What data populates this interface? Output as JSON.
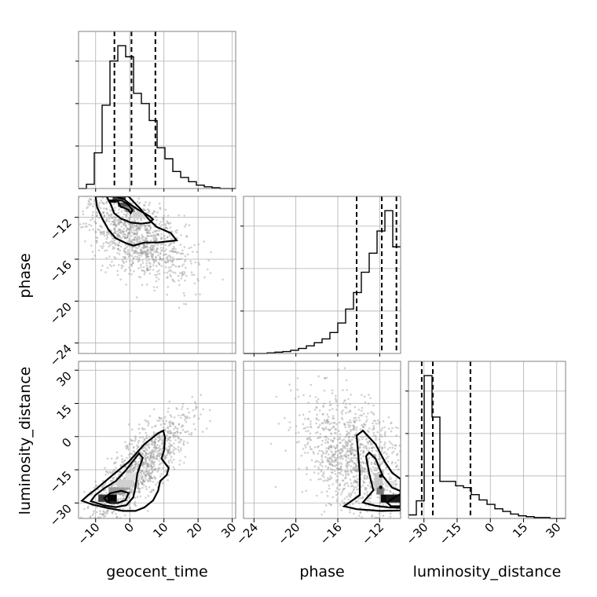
{
  "chart_data": {
    "type": "corner",
    "parameters": [
      "geocent_time",
      "phase",
      "luminosity_distance"
    ],
    "axis_labels": {
      "x": [
        "geocent_time",
        "phase",
        "luminosity_distance"
      ],
      "y": [
        "",
        "phase",
        "luminosity_distance"
      ]
    },
    "ranges": {
      "geocent_time": [
        -15,
        31
      ],
      "phase": [
        -25,
        -10
      ],
      "luminosity_distance": [
        -37,
        34
      ]
    },
    "ticks": {
      "geocent_time": [
        -10,
        0,
        10,
        20,
        30
      ],
      "phase": [
        -24,
        -20,
        -16,
        -12
      ],
      "luminosity_distance": [
        -30,
        -15,
        0,
        15,
        30
      ]
    },
    "tick_labels": {
      "geocent_time": [
        "−10",
        "0",
        "10",
        "20",
        "30"
      ],
      "phase": [
        "−24",
        "−20",
        "−16",
        "−12"
      ],
      "luminosity_distance": [
        "−30",
        "−15",
        "0",
        "15",
        "30"
      ]
    },
    "grid": true,
    "marginals": {
      "geocent_time": {
        "bin_edges": [
          -15,
          -12.7,
          -10.4,
          -8.1,
          -5.8,
          -3.5,
          -1.2,
          1.1,
          3.4,
          5.7,
          8.0,
          10.3,
          12.6,
          14.9,
          17.2,
          19.5,
          21.8,
          24.1,
          26.4,
          28.7,
          31
        ],
        "counts": [
          0,
          5,
          42,
          98,
          150,
          168,
          155,
          112,
          100,
          80,
          48,
          35,
          20,
          13,
          8,
          4,
          2,
          1,
          0,
          0
        ],
        "quantiles": [
          -4.5,
          0.5,
          7.5
        ]
      },
      "phase": {
        "bin_edges": [
          -25,
          -24.25,
          -23.5,
          -22.75,
          -22,
          -21.25,
          -20.5,
          -19.75,
          -19,
          -18.25,
          -17.5,
          -16.75,
          -16,
          -15.25,
          -14.5,
          -13.75,
          -13,
          -12.25,
          -11.5,
          -10.75,
          -10
        ],
        "counts": [
          0,
          0,
          0,
          1,
          2,
          3,
          5,
          8,
          12,
          17,
          23,
          33,
          48,
          70,
          96,
          128,
          158,
          193,
          225,
          168
        ],
        "quantiles": [
          -14.2,
          -11.8,
          -10.4
        ]
      },
      "luminosity_distance": {
        "bin_edges": [
          -37,
          -33.45,
          -29.9,
          -26.35,
          -22.8,
          -19.25,
          -15.7,
          -12.15,
          -8.6,
          -5.05,
          -1.5,
          2.05,
          5.6,
          9.15,
          12.7,
          16.25,
          19.8,
          23.35,
          26.9,
          30.45,
          34
        ],
        "counts": [
          4,
          20,
          162,
          115,
          42,
          42,
          37,
          35,
          27,
          21,
          16,
          11,
          8,
          5,
          3,
          2,
          1,
          1,
          0,
          0
        ],
        "quantiles": [
          -31,
          -26,
          -9
        ]
      }
    },
    "joint": [
      {
        "x": "geocent_time",
        "y": "phase",
        "scatter_center": [
          2,
          -13.8
        ],
        "scatter_spread": [
          8,
          2.2
        ],
        "correlation": -0.55,
        "contours": [
          [
            [
              -3.6,
              -10.4
            ],
            [
              -2.7,
              -11.0
            ],
            [
              -1.6,
              -11.1
            ],
            [
              -0.4,
              -11.3
            ],
            [
              0.3,
              -11.6
            ],
            [
              0.8,
              -11.3
            ],
            [
              -0.4,
              -10.8
            ],
            [
              -2.3,
              -10.4
            ]
          ],
          [
            [
              -6.8,
              -10.0
            ],
            [
              -5.5,
              -10.8
            ],
            [
              -4.6,
              -11.6
            ],
            [
              -2.7,
              -12.1
            ],
            [
              0.3,
              -12.5
            ],
            [
              3.4,
              -12.6
            ],
            [
              5.8,
              -12.5
            ],
            [
              6.8,
              -12.2
            ],
            [
              5.8,
              -11.9
            ],
            [
              2.6,
              -11.3
            ],
            [
              0.3,
              -10.8
            ],
            [
              -1.6,
              -10.3
            ],
            [
              -4.1,
              -10.0
            ]
          ],
          [
            [
              -10.0,
              -10.0
            ],
            [
              -9.6,
              -11.0
            ],
            [
              -8.1,
              -12.1
            ],
            [
              -6.2,
              -13.2
            ],
            [
              -4.1,
              -14.0
            ],
            [
              -0.9,
              -14.5
            ],
            [
              1.1,
              -14.7
            ],
            [
              4.3,
              -14.4
            ],
            [
              8.3,
              -14.4
            ],
            [
              13.7,
              -14.2
            ],
            [
              12.0,
              -13.5
            ],
            [
              7.8,
              -12.9
            ],
            [
              5.3,
              -12.1
            ],
            [
              3.4,
              -11.3
            ],
            [
              1.1,
              -10.5
            ],
            [
              -0.4,
              -10.0
            ]
          ]
        ]
      },
      {
        "x": "geocent_time",
        "y": "luminosity_distance",
        "scatter_center": [
          3,
          -14
        ],
        "scatter_spread": [
          7,
          12
        ],
        "correlation": 0.8,
        "contours": [
          [
            [
              -6.7,
              -29.5
            ],
            [
              -7.5,
              -27.8
            ],
            [
              -5.7,
              -25.6
            ],
            [
              -2.5,
              -24.5
            ],
            [
              -0.3,
              -25.5
            ],
            [
              -1.3,
              -28.8
            ],
            [
              -3.5,
              -30.0
            ],
            [
              -5.7,
              -30.0
            ]
          ],
          [
            [
              -11.4,
              -29.2
            ],
            [
              -10.1,
              -26.5
            ],
            [
              -7.5,
              -23.4
            ],
            [
              -4.1,
              -20.1
            ],
            [
              -1.3,
              -15.5
            ],
            [
              2.7,
              -7.6
            ],
            [
              3.8,
              -9.6
            ],
            [
              2.2,
              -16.8
            ],
            [
              1.7,
              -22.5
            ],
            [
              1.0,
              -27.5
            ],
            [
              -1.0,
              -31.0
            ],
            [
              -4.1,
              -31.9
            ],
            [
              -7.5,
              -31.1
            ]
          ],
          [
            [
              -14.0,
              -29.0
            ],
            [
              -12.2,
              -26.5
            ],
            [
              -9.6,
              -23.4
            ],
            [
              -5.2,
              -17.6
            ],
            [
              -0.3,
              -11.4
            ],
            [
              4.3,
              -3.4
            ],
            [
              8.3,
              1.5
            ],
            [
              9.8,
              2.7
            ],
            [
              10.3,
              -0.4
            ],
            [
              10.0,
              -6.5
            ],
            [
              9.3,
              -10.0
            ],
            [
              11.4,
              -14.2
            ],
            [
              10.8,
              -17.4
            ],
            [
              8.9,
              -20.1
            ],
            [
              8.3,
              -24.5
            ],
            [
              6.8,
              -28.9
            ],
            [
              4.3,
              -32.0
            ],
            [
              1.7,
              -33.6
            ],
            [
              -2.0,
              -33.6
            ],
            [
              -6.7,
              -32.2
            ],
            [
              -10.8,
              -30.8
            ]
          ]
        ]
      },
      {
        "x": "phase",
        "y": "luminosity_distance",
        "scatter_center": [
          -14.5,
          -10
        ],
        "scatter_spread": [
          2.5,
          14
        ],
        "correlation": -0.3,
        "contours": [
          [
            [
              -11.3,
              -29.8
            ],
            [
              -10.6,
              -27.5
            ],
            [
              -10.0,
              -25.9
            ],
            [
              -10.0,
              -31.5
            ],
            [
              -10.9,
              -31.5
            ]
          ],
          [
            [
              -13.6,
              -29.8
            ],
            [
              -12.6,
              -24.3
            ],
            [
              -13.0,
              -16.7
            ],
            [
              -13.3,
              -8.9
            ],
            [
              -13.0,
              -7.2
            ],
            [
              -12.4,
              -9.9
            ],
            [
              -11.7,
              -17.8
            ],
            [
              -10.8,
              -23.1
            ],
            [
              -10.0,
              -24.6
            ],
            [
              -10.0,
              -32.2
            ],
            [
              -11.2,
              -32.0
            ],
            [
              -12.4,
              -31.3
            ]
          ],
          [
            [
              -15.4,
              -31.5
            ],
            [
              -13.9,
              -26.5
            ],
            [
              -13.9,
              -16.4
            ],
            [
              -14.2,
              0.5
            ],
            [
              -13.6,
              2.7
            ],
            [
              -12.4,
              -3.4
            ],
            [
              -11.5,
              -11.4
            ],
            [
              -10.8,
              -16.4
            ],
            [
              -10.0,
              -19.2
            ],
            [
              -10.0,
              -33.4
            ],
            [
              -12.0,
              -33.6
            ],
            [
              -14.2,
              -32.8
            ]
          ]
        ]
      }
    ],
    "density_blocks": [
      {
        "x": "geocent_time",
        "y": "phase",
        "cells": [
          [
            -6.2,
            -10.3,
            -3.8,
            -10.6,
            "#050505"
          ],
          [
            -5.0,
            -10.0,
            -1.2,
            -10.3,
            "#3a3a3a"
          ],
          [
            -3.5,
            -10.6,
            0.0,
            -11.0,
            "#555555"
          ],
          [
            -1.2,
            -11.0,
            1.5,
            -11.5,
            "#8a8a8a"
          ],
          [
            0.8,
            -11.5,
            3.5,
            -12.1,
            "#cfcfcf"
          ],
          [
            3.5,
            -11.5,
            5.2,
            -12.1,
            "#d9d9d9"
          ]
        ]
      },
      {
        "x": "geocent_time",
        "y": "luminosity_distance",
        "cells": [
          [
            -9.2,
            -26.2,
            -6.5,
            -29.5,
            "#3a3a3a"
          ],
          [
            -6.5,
            -26.2,
            -3.8,
            -29.5,
            "#050505"
          ],
          [
            -6.2,
            -22.9,
            -1.3,
            -26.2,
            "#9a9a9a"
          ],
          [
            -3.8,
            -19.6,
            1.1,
            -22.9,
            "#d0d0d0"
          ],
          [
            -1.3,
            -16.3,
            3.4,
            -19.6,
            "#e0e0e0"
          ]
        ]
      },
      {
        "x": "phase",
        "y": "luminosity_distance",
        "cells": [
          [
            -11.3,
            -26.2,
            -10.0,
            -29.8,
            "#1a1a1a"
          ],
          [
            -11.9,
            -26.2,
            -11.3,
            -29.8,
            "#0a0a0a"
          ],
          [
            -12.3,
            -23.0,
            -11.6,
            -26.2,
            "#7a7a7a"
          ],
          [
            -12.5,
            -16.5,
            -11.7,
            -23.0,
            "#c8c8c8"
          ],
          [
            -11.5,
            -20.0,
            -10.5,
            -23.0,
            "#e2e2e2"
          ]
        ]
      }
    ],
    "density_marks": [
      {
        "x": "phase",
        "y": "luminosity_distance",
        "points": [
          [
            -11.9,
            -17.8
          ],
          [
            -11.9,
            -22.9
          ]
        ]
      }
    ]
  }
}
